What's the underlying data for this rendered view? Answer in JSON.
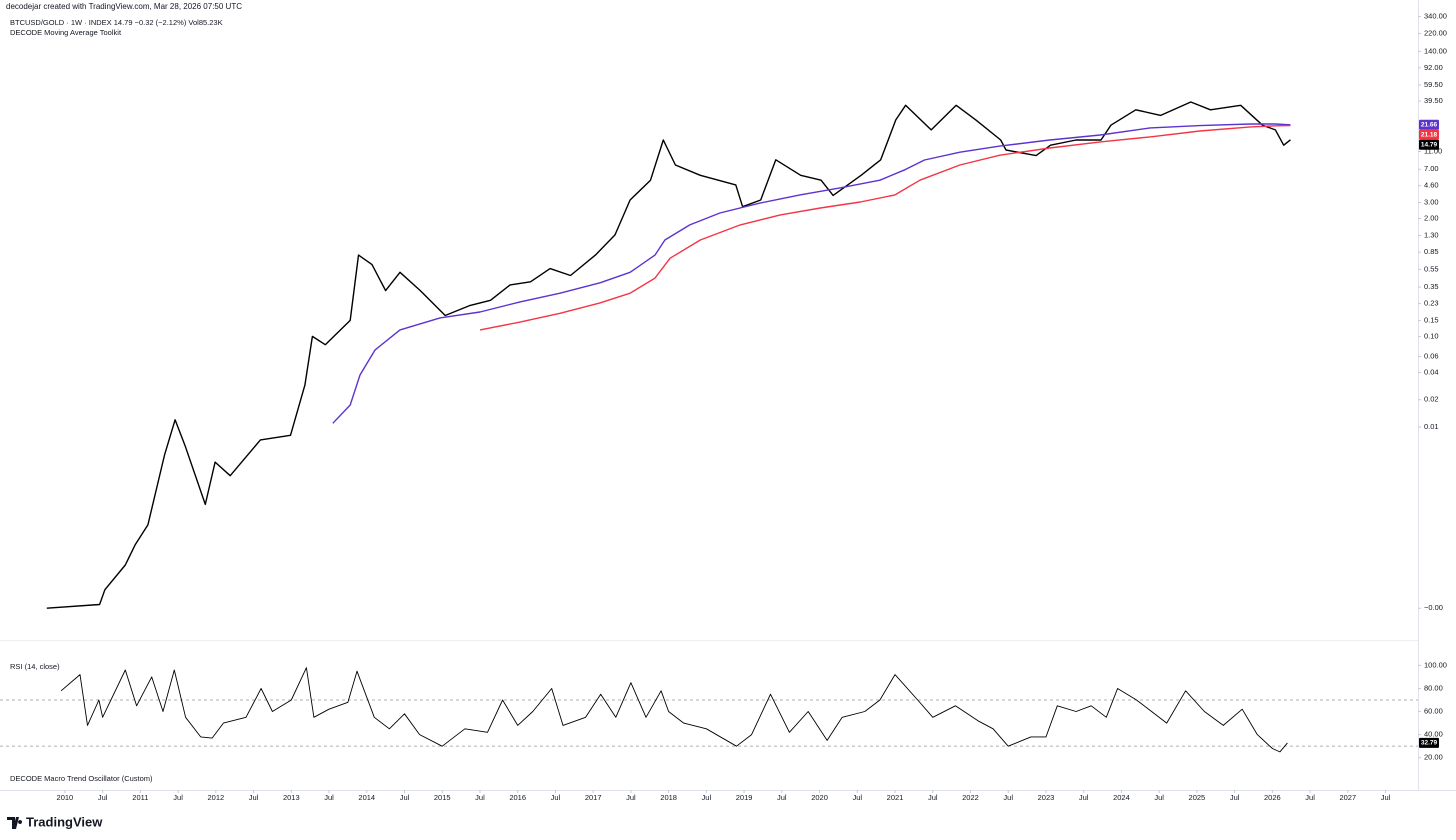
{
  "meta": {
    "created": "decodejar created with TradingView.com, Mar 28, 2026 07:50 UTC"
  },
  "footer": {
    "brand": "TradingView"
  },
  "chart_data": [
    {
      "type": "line",
      "title": "BTCUSD/GOLD · 1W · INDEX  14.79  −0.32 (−2.12%)  Vol85.23K",
      "subtitle": "DECODE Moving Average Toolkit",
      "log_scale": true,
      "xlim": [
        2009.14,
        2027.93
      ],
      "ylim": [
        4.46e-05,
        516
      ],
      "xticks": [
        2010,
        {
          "value": 2010.5,
          "label": "Jul"
        },
        2011,
        {
          "value": 2011.5,
          "label": "Jul"
        },
        2012,
        {
          "value": 2012.5,
          "label": "Jul"
        },
        2013,
        {
          "value": 2013.5,
          "label": "Jul"
        },
        2014,
        {
          "value": 2014.5,
          "label": "Jul"
        },
        2015,
        {
          "value": 2015.5,
          "label": "Jul"
        },
        2016,
        {
          "value": 2016.5,
          "label": "Jul"
        },
        2017,
        {
          "value": 2017.5,
          "label": "Jul"
        },
        2018,
        {
          "value": 2018.5,
          "label": "Jul"
        },
        2019,
        {
          "value": 2019.5,
          "label": "Jul"
        },
        2020,
        {
          "value": 2020.5,
          "label": "Jul"
        },
        2021,
        {
          "value": 2021.5,
          "label": "Jul"
        },
        2022,
        {
          "value": 2022.5,
          "label": "Jul"
        },
        2023,
        {
          "value": 2023.5,
          "label": "Jul"
        },
        2024,
        {
          "value": 2024.5,
          "label": "Jul"
        },
        2025,
        {
          "value": 2025.5,
          "label": "Jul"
        },
        2026,
        {
          "value": 2026.5,
          "label": "Jul"
        },
        2027,
        {
          "value": 2027.5,
          "label": "Jul"
        }
      ],
      "yticks": [
        {
          "value": 340,
          "label": "340.00"
        },
        {
          "value": 220,
          "label": "220.00"
        },
        {
          "value": 140,
          "label": "140.00"
        },
        {
          "value": 92,
          "label": "92.00"
        },
        {
          "value": 59.5,
          "label": "59.50"
        },
        {
          "value": 39.5,
          "label": "39.50"
        },
        {
          "value": 11,
          "label": "11.00"
        },
        {
          "value": 7,
          "label": "7.00"
        },
        {
          "value": 4.6,
          "label": "4.60"
        },
        {
          "value": 3,
          "label": "3.00"
        },
        {
          "value": 2,
          "label": "2.00"
        },
        {
          "value": 1.3,
          "label": "1.30"
        },
        0.85,
        0.55,
        0.35,
        0.23,
        0.15,
        {
          "value": 0.1,
          "label": "0.10"
        },
        0.06,
        0.04,
        0.02,
        0.01,
        {
          "value": 0.0001,
          "label": "−0.00"
        }
      ],
      "series": [
        {
          "name": "BTCUSD/GOLD",
          "color": "#000000",
          "x": [
            2009.76,
            2010.46,
            2010.53,
            2010.8,
            2010.93,
            2011.1,
            2011.32,
            2011.46,
            2011.59,
            2011.86,
            2011.99,
            2012.19,
            2012.59,
            2012.99,
            2013.18,
            2013.28,
            2013.45,
            2013.78,
            2013.89,
            2014.07,
            2014.25,
            2014.44,
            2014.71,
            2015.04,
            2015.37,
            2015.64,
            2015.9,
            2016.17,
            2016.43,
            2016.7,
            2017.03,
            2017.29,
            2017.49,
            2017.76,
            2017.93,
            2018.09,
            2018.42,
            2018.89,
            2018.98,
            2019.22,
            2019.42,
            2019.75,
            2020.02,
            2020.18,
            2020.55,
            2020.81,
            2021.01,
            2021.14,
            2021.48,
            2021.81,
            2022.07,
            2022.4,
            2022.47,
            2022.87,
            2023.06,
            2023.4,
            2023.73,
            2023.86,
            2024.19,
            2024.52,
            2024.92,
            2025.18,
            2025.58,
            2025.87,
            2026.04,
            2026.15,
            2026.24
          ],
          "values": [
            0.0001,
            0.00011,
            0.00016,
            0.0003,
            0.0005,
            0.00083,
            0.0049,
            0.012,
            0.0063,
            0.0014,
            0.0041,
            0.0029,
            0.0072,
            0.0081,
            0.029,
            0.1,
            0.081,
            0.15,
            0.79,
            0.62,
            0.32,
            0.51,
            0.32,
            0.17,
            0.22,
            0.25,
            0.37,
            0.4,
            0.56,
            0.47,
            0.79,
            1.32,
            3.2,
            5.3,
            14.7,
            7.8,
            6.0,
            4.7,
            2.7,
            3.2,
            8.9,
            6.0,
            5.3,
            3.6,
            6.0,
            8.9,
            24.5,
            35.5,
            19,
            35.5,
            24.5,
            14.7,
            11.4,
            9.9,
            12.9,
            14.7,
            14.7,
            21.4,
            31.7,
            27.5,
            38.6,
            31.7,
            35.5,
            21.4,
            19,
            12.9,
            14.79
          ]
        },
        {
          "name": "MA",
          "color": "#5c33cf",
          "x": [
            2013.55,
            2013.78,
            2013.91,
            2014.11,
            2014.44,
            2014.97,
            2015.5,
            2016.03,
            2016.56,
            2017.09,
            2017.49,
            2017.82,
            2017.95,
            2018.28,
            2018.68,
            2019.21,
            2019.74,
            2020.27,
            2020.8,
            2021.13,
            2021.39,
            2021.86,
            2022.39,
            2023.05,
            2023.72,
            2024.38,
            2025.04,
            2025.71,
            2026.04,
            2026.24
          ],
          "values": [
            0.011,
            0.0175,
            0.0375,
            0.071,
            0.118,
            0.16,
            0.186,
            0.24,
            0.3,
            0.39,
            0.51,
            0.79,
            1.16,
            1.7,
            2.3,
            2.96,
            3.64,
            4.35,
            5.3,
            6.9,
            8.85,
            10.8,
            12.6,
            14.7,
            16.7,
            20,
            21.2,
            22.1,
            22.1,
            21.66
          ]
        },
        {
          "name": "MA 2",
          "color": "#f23645",
          "x": [
            2015.5,
            2016.03,
            2016.56,
            2017.09,
            2017.49,
            2017.82,
            2018.02,
            2018.42,
            2018.95,
            2019.48,
            2020.01,
            2020.54,
            2021.0,
            2021.33,
            2021.86,
            2022.39,
            2023.05,
            2023.72,
            2024.38,
            2025.04,
            2025.71,
            2026.04,
            2026.24
          ],
          "values": [
            0.118,
            0.144,
            0.18,
            0.234,
            0.3,
            0.44,
            0.73,
            1.16,
            1.7,
            2.19,
            2.61,
            3.04,
            3.64,
            5.3,
            7.8,
            10.0,
            12.0,
            14.0,
            15.9,
            18.5,
            20.5,
            21.1,
            21.18
          ]
        }
      ]
    },
    {
      "type": "line",
      "title": "RSI (14, close)",
      "annotation": "DECODE Macro Trend Oscillator (Custom)",
      "xlim": [
        2009.14,
        2027.93
      ],
      "ylim": [
        -8,
        122
      ],
      "yticks": [
        {
          "value": 100,
          "label": "100.00"
        },
        {
          "value": 80,
          "label": "80.00"
        },
        {
          "value": 60,
          "label": "60.00"
        },
        {
          "value": 40,
          "label": "40.00"
        },
        {
          "value": 20,
          "label": "20.00"
        }
      ],
      "reference_lines": [
        70,
        30
      ],
      "series": [
        {
          "name": "RSI",
          "color": "#000000",
          "x": [
            2009.95,
            2010.2,
            2010.3,
            2010.45,
            2010.5,
            2010.8,
            2010.95,
            2011.15,
            2011.3,
            2011.45,
            2011.6,
            2011.8,
            2011.95,
            2012.1,
            2012.4,
            2012.6,
            2012.75,
            2013.0,
            2013.2,
            2013.3,
            2013.5,
            2013.75,
            2013.87,
            2014.1,
            2014.3,
            2014.5,
            2014.7,
            2015.0,
            2015.3,
            2015.6,
            2015.8,
            2016.0,
            2016.2,
            2016.45,
            2016.6,
            2016.9,
            2017.1,
            2017.3,
            2017.5,
            2017.7,
            2017.9,
            2018.0,
            2018.2,
            2018.5,
            2018.9,
            2019.1,
            2019.35,
            2019.6,
            2019.85,
            2020.1,
            2020.3,
            2020.6,
            2020.8,
            2021.0,
            2021.3,
            2021.5,
            2021.8,
            2022.1,
            2022.3,
            2022.5,
            2022.8,
            2023.0,
            2023.15,
            2023.4,
            2023.6,
            2023.8,
            2023.95,
            2024.2,
            2024.4,
            2024.6,
            2024.85,
            2025.1,
            2025.35,
            2025.6,
            2025.8,
            2026.0,
            2026.1,
            2026.2
          ],
          "values": [
            78,
            92,
            48,
            70,
            55,
            96,
            65,
            90,
            60,
            96,
            55,
            38,
            37,
            50,
            55,
            80,
            60,
            70,
            98,
            55,
            62,
            68,
            95,
            55,
            45,
            58,
            40,
            30,
            45,
            42,
            70,
            48,
            60,
            80,
            48,
            55,
            75,
            55,
            85,
            55,
            78,
            60,
            50,
            45,
            30,
            40,
            75,
            42,
            60,
            35,
            55,
            60,
            70,
            92,
            70,
            55,
            65,
            52,
            45,
            30,
            38,
            38,
            65,
            60,
            65,
            55,
            80,
            70,
            60,
            50,
            78,
            60,
            48,
            62,
            40,
            28,
            25,
            32.79
          ]
        }
      ]
    }
  ]
}
